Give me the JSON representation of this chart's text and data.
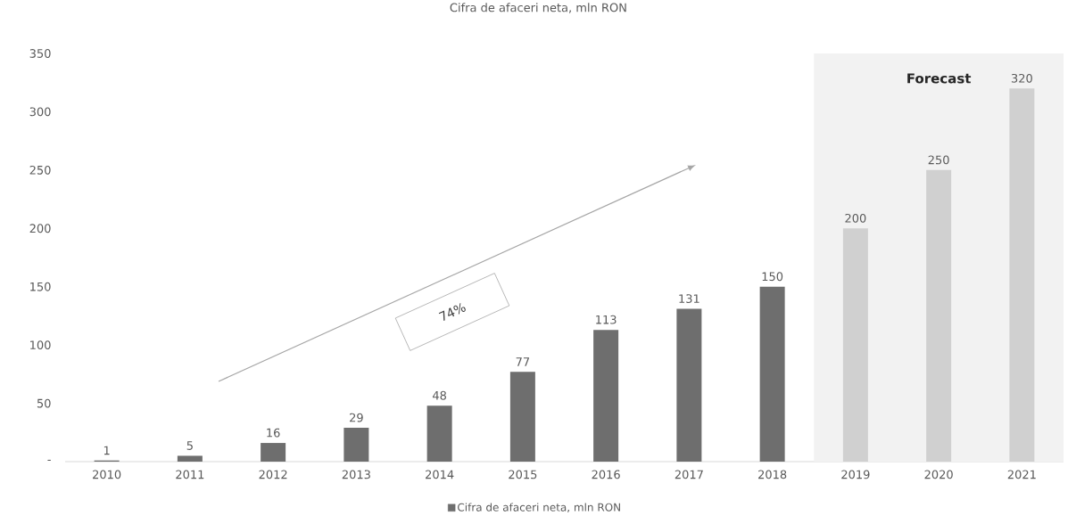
{
  "chart_data": {
    "type": "bar",
    "title": "Cifra de afaceri neta, mln RON",
    "x": [
      2010,
      2011,
      2012,
      2013,
      2014,
      2015,
      2016,
      2017,
      2018,
      2019,
      2020,
      2021
    ],
    "series": [
      {
        "name": "Cifra de afaceri neta, mln RON",
        "color": "#6e6e6e",
        "colors": [
          "#6e6e6e",
          "#6e6e6e",
          "#6e6e6e",
          "#6e6e6e",
          "#6e6e6e",
          "#6e6e6e",
          "#6e6e6e",
          "#6e6e6e",
          "#6e6e6e",
          "#d0d0d0",
          "#d0d0d0",
          "#d0d0d0"
        ],
        "values": [
          1,
          5,
          16,
          29,
          48,
          77,
          113,
          131,
          150,
          200,
          250,
          320
        ]
      }
    ],
    "xlim": [
      2009.5,
      2021.5
    ],
    "xticks": [
      2010,
      2011,
      2012,
      2013,
      2014,
      2015,
      2016,
      2017,
      2018,
      2019,
      2020,
      2021
    ],
    "ylim": [
      0,
      350
    ],
    "yticks": [
      {
        "value": 0,
        "label": "-"
      },
      50,
      100,
      150,
      200,
      250,
      300,
      350
    ],
    "data_labels": true,
    "legend": "bottom",
    "bands": [
      {
        "axis": "x",
        "from": 2018.5,
        "to": 2021.5,
        "label": "Forecast",
        "color": "#f2f2f2"
      }
    ],
    "annotations": [
      "74%"
    ]
  }
}
